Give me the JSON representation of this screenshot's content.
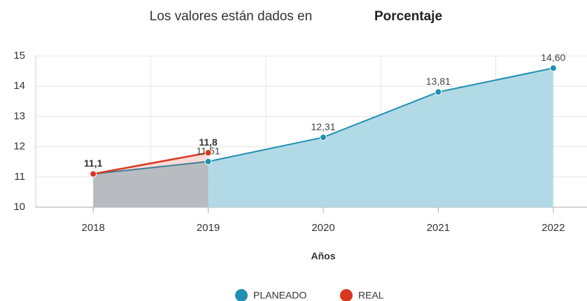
{
  "chart_data": {
    "type": "area",
    "title": "Los valores están dados en",
    "title_emphasis": "Porcentaje",
    "x_label": "Años",
    "categories": [
      "2018",
      "2019",
      "2020",
      "2021",
      "2022"
    ],
    "series": [
      {
        "name": "PLANEADO",
        "color": "#1f8fb3",
        "fill": "#a9d6e3",
        "values": [
          11.1,
          11.51,
          12.31,
          13.81,
          14.6
        ],
        "value_labels": [
          "11,1",
          "11,51",
          "12,31",
          "13,81",
          "14,60"
        ]
      },
      {
        "name": "REAL",
        "color": "#d9381e",
        "fill": "#d9381e",
        "values": [
          11.1,
          11.8,
          null,
          null,
          null
        ],
        "value_labels": [
          "11,1",
          "11,8",
          null,
          null,
          null
        ]
      }
    ],
    "ylim": [
      10,
      15
    ],
    "yticks": [
      10,
      11,
      12,
      13,
      14,
      15
    ],
    "grid": true,
    "legend": "bottom"
  }
}
